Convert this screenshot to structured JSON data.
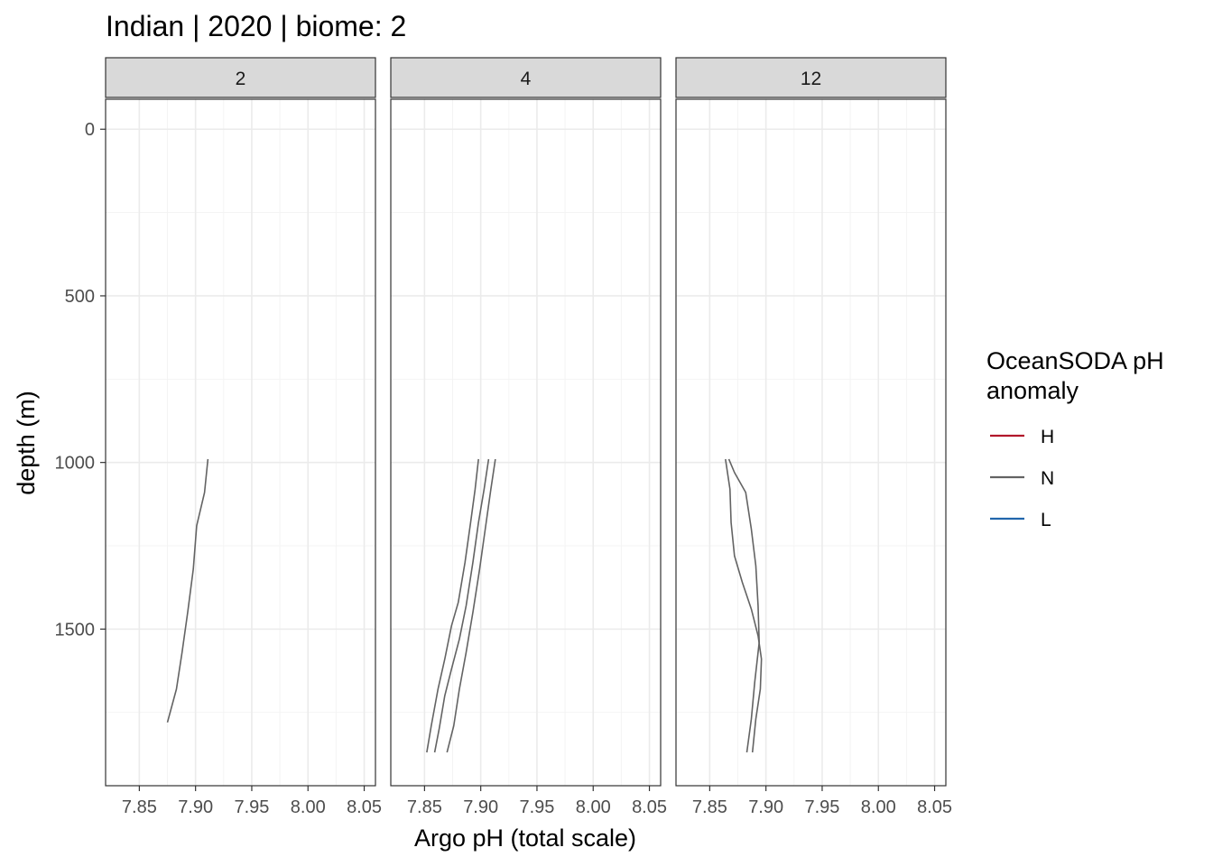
{
  "chart_data": {
    "type": "line",
    "title": "Indian | 2020 | biome: 2",
    "xlabel": "Argo pH (total scale)",
    "ylabel": "depth (m)",
    "xlim": [
      7.82,
      8.06
    ],
    "ylim": [
      -90,
      1970
    ],
    "y_reversed": true,
    "x_ticks": [
      7.85,
      7.9,
      7.95,
      8.0,
      8.05
    ],
    "x_tick_labels": [
      "7.85",
      "7.90",
      "7.95",
      "8.00",
      "8.05"
    ],
    "y_ticks": [
      0,
      500,
      1000,
      1500
    ],
    "y_tick_labels": [
      "0",
      "500",
      "1000",
      "1500"
    ],
    "grid": true,
    "legend": {
      "title_lines": [
        "OceanSODA pH",
        "anomaly"
      ],
      "position": "right",
      "entries": [
        {
          "label": "H",
          "color": "#b2182b"
        },
        {
          "label": "N",
          "color": "#636363"
        },
        {
          "label": "L",
          "color": "#2166ac"
        }
      ]
    },
    "panels": [
      {
        "label": "2",
        "profiles": [
          {
            "anomaly": "N",
            "points": [
              [
                7.911,
                990
              ],
              [
                7.908,
                1090
              ],
              [
                7.901,
                1190
              ],
              [
                7.898,
                1320
              ],
              [
                7.893,
                1450
              ],
              [
                7.888,
                1570
              ],
              [
                7.883,
                1680
              ],
              [
                7.875,
                1780
              ]
            ]
          }
        ]
      },
      {
        "label": "4",
        "profiles": [
          {
            "anomaly": "N",
            "points": [
              [
                7.898,
                990
              ],
              [
                7.895,
                1080
              ],
              [
                7.891,
                1180
              ],
              [
                7.886,
                1300
              ],
              [
                7.88,
                1420
              ],
              [
                7.874,
                1490
              ],
              [
                7.868,
                1590
              ],
              [
                7.862,
                1680
              ],
              [
                7.856,
                1790
              ],
              [
                7.852,
                1870
              ]
            ]
          },
          {
            "anomaly": "N",
            "points": [
              [
                7.907,
                990
              ],
              [
                7.903,
                1080
              ],
              [
                7.898,
                1180
              ],
              [
                7.893,
                1300
              ],
              [
                7.887,
                1430
              ],
              [
                7.881,
                1530
              ],
              [
                7.874,
                1620
              ],
              [
                7.868,
                1700
              ],
              [
                7.863,
                1800
              ],
              [
                7.859,
                1870
              ]
            ]
          },
          {
            "anomaly": "N",
            "points": [
              [
                7.913,
                990
              ],
              [
                7.909,
                1080
              ],
              [
                7.904,
                1200
              ],
              [
                7.899,
                1320
              ],
              [
                7.893,
                1450
              ],
              [
                7.887,
                1570
              ],
              [
                7.881,
                1680
              ],
              [
                7.876,
                1790
              ],
              [
                7.87,
                1870
              ]
            ]
          }
        ]
      },
      {
        "label": "12",
        "profiles": [
          {
            "anomaly": "N",
            "points": [
              [
                7.864,
                990
              ],
              [
                7.868,
                1080
              ],
              [
                7.869,
                1180
              ],
              [
                7.872,
                1280
              ],
              [
                7.879,
                1360
              ],
              [
                7.887,
                1440
              ],
              [
                7.893,
                1520
              ],
              [
                7.896,
                1590
              ],
              [
                7.895,
                1680
              ],
              [
                7.891,
                1770
              ],
              [
                7.888,
                1870
              ]
            ]
          },
          {
            "anomaly": "N",
            "points": [
              [
                7.867,
                990
              ],
              [
                7.872,
                1030
              ],
              [
                7.882,
                1090
              ],
              [
                7.887,
                1200
              ],
              [
                7.891,
                1310
              ],
              [
                7.893,
                1430
              ],
              [
                7.894,
                1540
              ],
              [
                7.89,
                1660
              ],
              [
                7.887,
                1770
              ],
              [
                7.883,
                1870
              ]
            ]
          }
        ]
      }
    ]
  }
}
